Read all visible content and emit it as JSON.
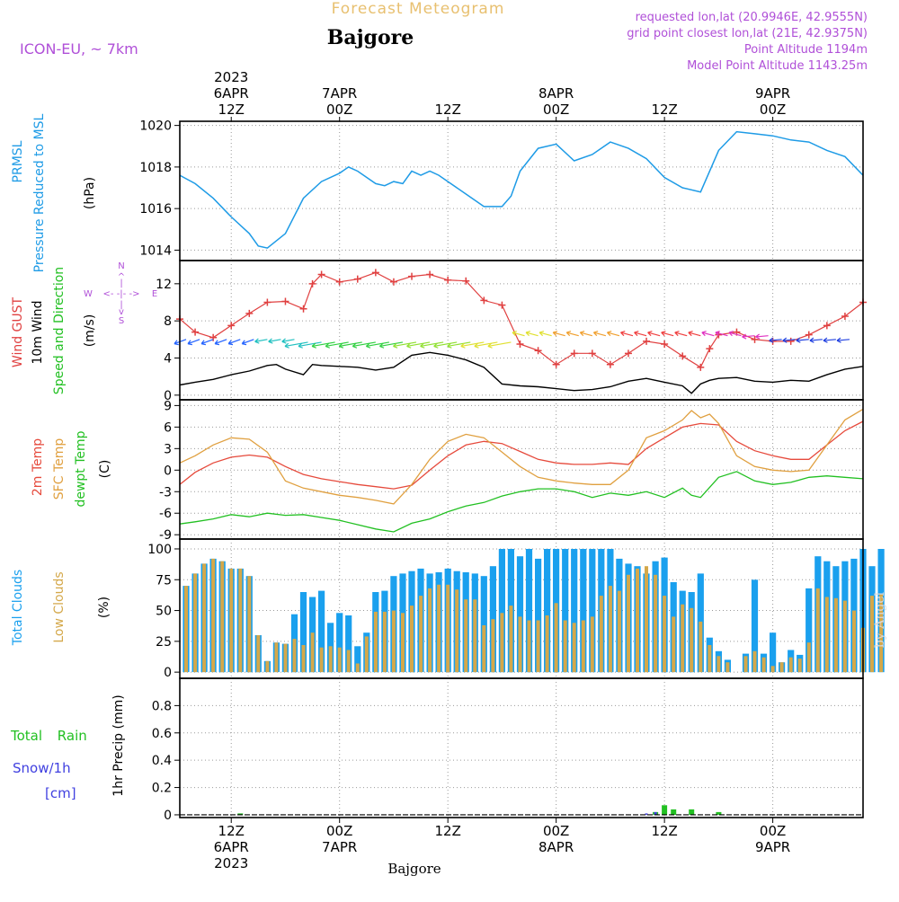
{
  "header": {
    "title_top": "Forecast Meteogram",
    "location": "Bajgore",
    "model": "ICON-EU, ~ 7km",
    "requested": "requested lon,lat (20.9946E, 42.9555N)",
    "gridpoint": "grid point closest lon,lat (21E, 42.9375N)",
    "point_alt": "Point Altitude 1194m",
    "model_alt": "Model Point Altitude 1143.25m",
    "footer_location": "Bajgore",
    "watermark": "by Angel"
  },
  "colors": {
    "pressure": "#1e9be6",
    "gust": "#e04040",
    "wind": "#000000",
    "t2m": "#e64a3c",
    "tsfc": "#e0a040",
    "dewpt": "#22c022",
    "total_cloud": "#1aa0ee",
    "low_cloud": "#d4a84a",
    "rain": "#22c022",
    "snow": "#4040e0",
    "purple": "#b050d8",
    "orange_title": "#e8c070"
  },
  "time_axis": {
    "top_labels": [
      {
        "lines": [
          "2023",
          "6APR",
          "12Z"
        ]
      },
      {
        "lines": [
          "7APR",
          "00Z"
        ]
      },
      {
        "lines": [
          "12Z"
        ]
      },
      {
        "lines": [
          "8APR",
          "00Z"
        ]
      },
      {
        "lines": [
          "12Z"
        ]
      },
      {
        "lines": [
          "9APR",
          "00Z"
        ]
      }
    ],
    "bottom_labels": [
      {
        "lines": [
          "12Z",
          "6APR",
          "2023"
        ]
      },
      {
        "lines": [
          "00Z",
          "7APR"
        ]
      },
      {
        "lines": [
          "12Z"
        ]
      },
      {
        "lines": [
          "00Z",
          "8APR"
        ]
      },
      {
        "lines": [
          "12Z"
        ]
      },
      {
        "lines": [
          "00Z",
          "9APR"
        ]
      }
    ],
    "label_hours": [
      12,
      24,
      36,
      48,
      60,
      72
    ],
    "hour_range": [
      6.3,
      82
    ]
  },
  "chart_data": [
    {
      "type": "line",
      "title": "PRMSL Pressure Reduced to MSL",
      "ylabel_lines": [
        "PRMSL",
        "Pressure Reduced to MSL"
      ],
      "units": "(hPa)",
      "ylim": [
        1013.5,
        1020.2
      ],
      "yticks": [
        1014,
        1016,
        1018,
        1020
      ],
      "series": [
        {
          "name": "PRMSL",
          "x": [
            6.3,
            8,
            10,
            12,
            14,
            15,
            16,
            18,
            20,
            22,
            24,
            25,
            26,
            28,
            29,
            30,
            31,
            32,
            33,
            34,
            35,
            36,
            38,
            40,
            42,
            43,
            44,
            46,
            48,
            50,
            52,
            54,
            56,
            58,
            60,
            62,
            64,
            66,
            68,
            70,
            72,
            74,
            76,
            78,
            80,
            82
          ],
          "values": [
            1017.6,
            1017.2,
            1016.5,
            1015.6,
            1014.8,
            1014.2,
            1014.1,
            1014.8,
            1016.5,
            1017.3,
            1017.7,
            1018.0,
            1017.8,
            1017.2,
            1017.1,
            1017.3,
            1017.2,
            1017.8,
            1017.6,
            1017.8,
            1017.6,
            1017.3,
            1016.7,
            1016.1,
            1016.1,
            1016.6,
            1017.8,
            1018.9,
            1019.1,
            1018.3,
            1018.6,
            1019.2,
            1018.9,
            1018.4,
            1017.5,
            1017.0,
            1016.8,
            1018.8,
            1019.7,
            1019.6,
            1019.5,
            1019.3,
            1019.2,
            1018.8,
            1018.5,
            1017.6
          ]
        }
      ]
    },
    {
      "type": "line",
      "title": "Wind GUST / 10m Wind Speed and Direction",
      "ylabel_lines": [
        "Wind GUST",
        "10m Wind",
        "Speed and Direction"
      ],
      "units": "(m/s)",
      "compass": {
        "n": "N",
        "s": "S",
        "w": "W",
        "e": "E"
      },
      "ylim": [
        -0.5,
        14.5
      ],
      "yticks": [
        0,
        4,
        8,
        12
      ],
      "series": [
        {
          "name": "Wind GUST",
          "x": [
            6.3,
            8,
            10,
            12,
            14,
            16,
            18,
            20,
            21,
            22,
            24,
            26,
            28,
            30,
            32,
            34,
            36,
            38,
            40,
            42,
            44,
            46,
            48,
            50,
            52,
            54,
            56,
            58,
            60,
            62,
            64,
            65,
            66,
            68,
            70,
            72,
            74,
            76,
            78,
            80,
            82
          ],
          "values": [
            8.2,
            6.8,
            6.2,
            7.5,
            8.8,
            10.0,
            10.1,
            9.3,
            12.0,
            13.0,
            12.2,
            12.5,
            13.2,
            12.2,
            12.8,
            13.0,
            12.4,
            12.3,
            10.2,
            9.7,
            5.5,
            4.8,
            3.3,
            4.5,
            4.5,
            3.3,
            4.5,
            5.8,
            5.5,
            4.2,
            3.0,
            5.0,
            6.5,
            6.8,
            6.0,
            5.8,
            5.8,
            6.5,
            7.5,
            8.5,
            10.0
          ]
        },
        {
          "name": "10m Wind",
          "x": [
            6.3,
            8,
            10,
            12,
            14,
            16,
            17,
            18,
            20,
            21,
            22,
            24,
            26,
            28,
            30,
            32,
            34,
            36,
            38,
            40,
            42,
            44,
            46,
            48,
            50,
            52,
            54,
            56,
            58,
            60,
            62,
            63,
            64,
            65,
            66,
            68,
            70,
            72,
            74,
            76,
            78,
            80,
            82
          ],
          "values": [
            1.1,
            1.4,
            1.7,
            2.2,
            2.6,
            3.2,
            3.3,
            2.8,
            2.2,
            3.3,
            3.2,
            3.1,
            3.0,
            2.7,
            3.0,
            4.3,
            4.6,
            4.3,
            3.8,
            3.0,
            1.2,
            1.0,
            0.9,
            0.7,
            0.5,
            0.6,
            0.9,
            1.5,
            1.8,
            1.4,
            1.0,
            0.2,
            1.2,
            1.6,
            1.8,
            1.9,
            1.5,
            1.4,
            1.6,
            1.5,
            2.2,
            2.8,
            3.1
          ]
        }
      ]
    },
    {
      "type": "line",
      "title": "2m Temp / SFC Temp / dewpt Temp",
      "ylabel_lines": [
        "2m Temp",
        "SFC Temp",
        "dewpt Temp"
      ],
      "units": "(C)",
      "ylim": [
        -9.6,
        9.8
      ],
      "yticks": [
        -9,
        -6,
        -3,
        0,
        3,
        6,
        9
      ],
      "series": [
        {
          "name": "2m Temp",
          "x": [
            6.3,
            8,
            10,
            12,
            14,
            16,
            18,
            20,
            22,
            24,
            26,
            28,
            30,
            32,
            34,
            36,
            38,
            40,
            42,
            44,
            46,
            48,
            50,
            52,
            54,
            56,
            58,
            60,
            62,
            64,
            66,
            68,
            70,
            72,
            74,
            76,
            78,
            80,
            82
          ],
          "values": [
            -2.0,
            -0.3,
            1.0,
            1.8,
            2.1,
            1.8,
            0.5,
            -0.6,
            -1.2,
            -1.6,
            -2.0,
            -2.3,
            -2.6,
            -2.1,
            0.0,
            2.0,
            3.5,
            4.0,
            3.7,
            2.6,
            1.5,
            1.0,
            0.8,
            0.8,
            1.0,
            0.8,
            3.0,
            4.5,
            6.0,
            6.5,
            6.3,
            4.0,
            2.7,
            2.0,
            1.5,
            1.5,
            3.5,
            5.5,
            6.8
          ]
        },
        {
          "name": "SFC Temp",
          "x": [
            6.3,
            8,
            10,
            12,
            14,
            16,
            18,
            20,
            22,
            24,
            26,
            28,
            30,
            32,
            34,
            36,
            38,
            40,
            42,
            44,
            46,
            48,
            50,
            52,
            54,
            56,
            58,
            60,
            62,
            63,
            64,
            65,
            66,
            68,
            70,
            72,
            74,
            76,
            78,
            80,
            82
          ],
          "values": [
            1.0,
            2.0,
            3.5,
            4.5,
            4.3,
            2.5,
            -1.5,
            -2.5,
            -3.0,
            -3.5,
            -3.8,
            -4.2,
            -4.7,
            -2.0,
            1.5,
            4.0,
            5.0,
            4.5,
            2.5,
            0.5,
            -1.0,
            -1.5,
            -1.8,
            -2.0,
            -2.0,
            0.0,
            4.5,
            5.5,
            7.0,
            8.3,
            7.3,
            7.8,
            6.5,
            2.0,
            0.5,
            0.0,
            -0.2,
            0.0,
            3.5,
            7.0,
            8.5
          ]
        },
        {
          "name": "dewpt Temp",
          "x": [
            6.3,
            8,
            10,
            12,
            14,
            16,
            18,
            20,
            22,
            24,
            26,
            28,
            30,
            32,
            34,
            36,
            38,
            40,
            42,
            44,
            46,
            48,
            50,
            52,
            54,
            56,
            58,
            60,
            62,
            63,
            64,
            66,
            68,
            70,
            72,
            74,
            76,
            78,
            80,
            82
          ],
          "values": [
            -7.5,
            -7.2,
            -6.8,
            -6.2,
            -6.5,
            -6.0,
            -6.3,
            -6.2,
            -6.6,
            -7.0,
            -7.6,
            -8.2,
            -8.6,
            -7.4,
            -6.8,
            -5.8,
            -5.0,
            -4.5,
            -3.6,
            -3.0,
            -2.6,
            -2.6,
            -3.0,
            -3.8,
            -3.2,
            -3.5,
            -3.0,
            -3.8,
            -2.5,
            -3.5,
            -3.8,
            -1.0,
            -0.2,
            -1.5,
            -2.0,
            -1.7,
            -1.0,
            -0.8,
            -1.0,
            -1.2
          ]
        }
      ]
    },
    {
      "type": "bar",
      "title": "Total Clouds / Low Clouds",
      "ylabel_lines": [
        "Total Clouds",
        "Low Clouds"
      ],
      "units": "(%)",
      "ylim": [
        -5,
        108
      ],
      "yticks": [
        0,
        25,
        50,
        75,
        100
      ],
      "x_start": 7,
      "x_step": 1,
      "series": [
        {
          "name": "Total Clouds",
          "values": [
            70,
            80,
            88,
            92,
            90,
            84,
            84,
            78,
            30,
            9,
            24,
            23,
            47,
            65,
            61,
            66,
            40,
            48,
            46,
            21,
            32,
            65,
            66,
            78,
            80,
            82,
            84,
            80,
            81,
            84,
            82,
            81,
            80,
            78,
            86,
            100,
            100,
            94,
            100,
            92,
            100,
            100,
            100,
            100,
            100,
            100,
            100,
            100,
            92,
            88,
            86,
            80,
            90,
            93,
            73,
            66,
            65,
            80,
            28,
            17,
            10,
            0,
            15,
            75,
            15,
            32,
            8,
            18,
            14,
            68,
            94,
            90,
            86,
            90,
            92,
            100,
            86,
            100
          ]
        },
        {
          "name": "Low Clouds",
          "values": [
            70,
            80,
            88,
            92,
            90,
            84,
            84,
            78,
            30,
            9,
            24,
            23,
            27,
            22,
            32,
            20,
            21,
            20,
            18,
            7,
            29,
            49,
            49,
            50,
            48,
            54,
            62,
            68,
            71,
            71,
            67,
            59,
            59,
            38,
            43,
            48,
            54,
            45,
            42,
            42,
            46,
            56,
            42,
            40,
            42,
            45,
            62,
            70,
            66,
            79,
            84,
            86,
            79,
            62,
            45,
            55,
            52,
            41,
            22,
            13,
            8,
            0,
            13,
            17,
            12,
            5,
            8,
            12,
            11,
            24,
            68,
            61,
            60,
            58,
            50,
            36,
            62,
            63
          ]
        }
      ]
    },
    {
      "type": "bar",
      "title": "1hr Precip",
      "ylabel_lines": [
        "Total Rain",
        "Snow/1h",
        "[cm]"
      ],
      "units": "1hr Precip (mm)",
      "ylim": [
        -0.02,
        1.0
      ],
      "yticks": [
        0,
        0.2,
        0.4,
        0.6,
        0.8
      ],
      "series": [
        {
          "name": "Total Rain",
          "x": [
            13,
            59,
            60,
            61,
            63,
            66
          ],
          "values": [
            0.01,
            0.02,
            0.07,
            0.04,
            0.04,
            0.02
          ]
        },
        {
          "name": "Snow/1h",
          "x": [
            58,
            59
          ],
          "values": [
            0.01,
            0.02
          ]
        }
      ]
    }
  ]
}
